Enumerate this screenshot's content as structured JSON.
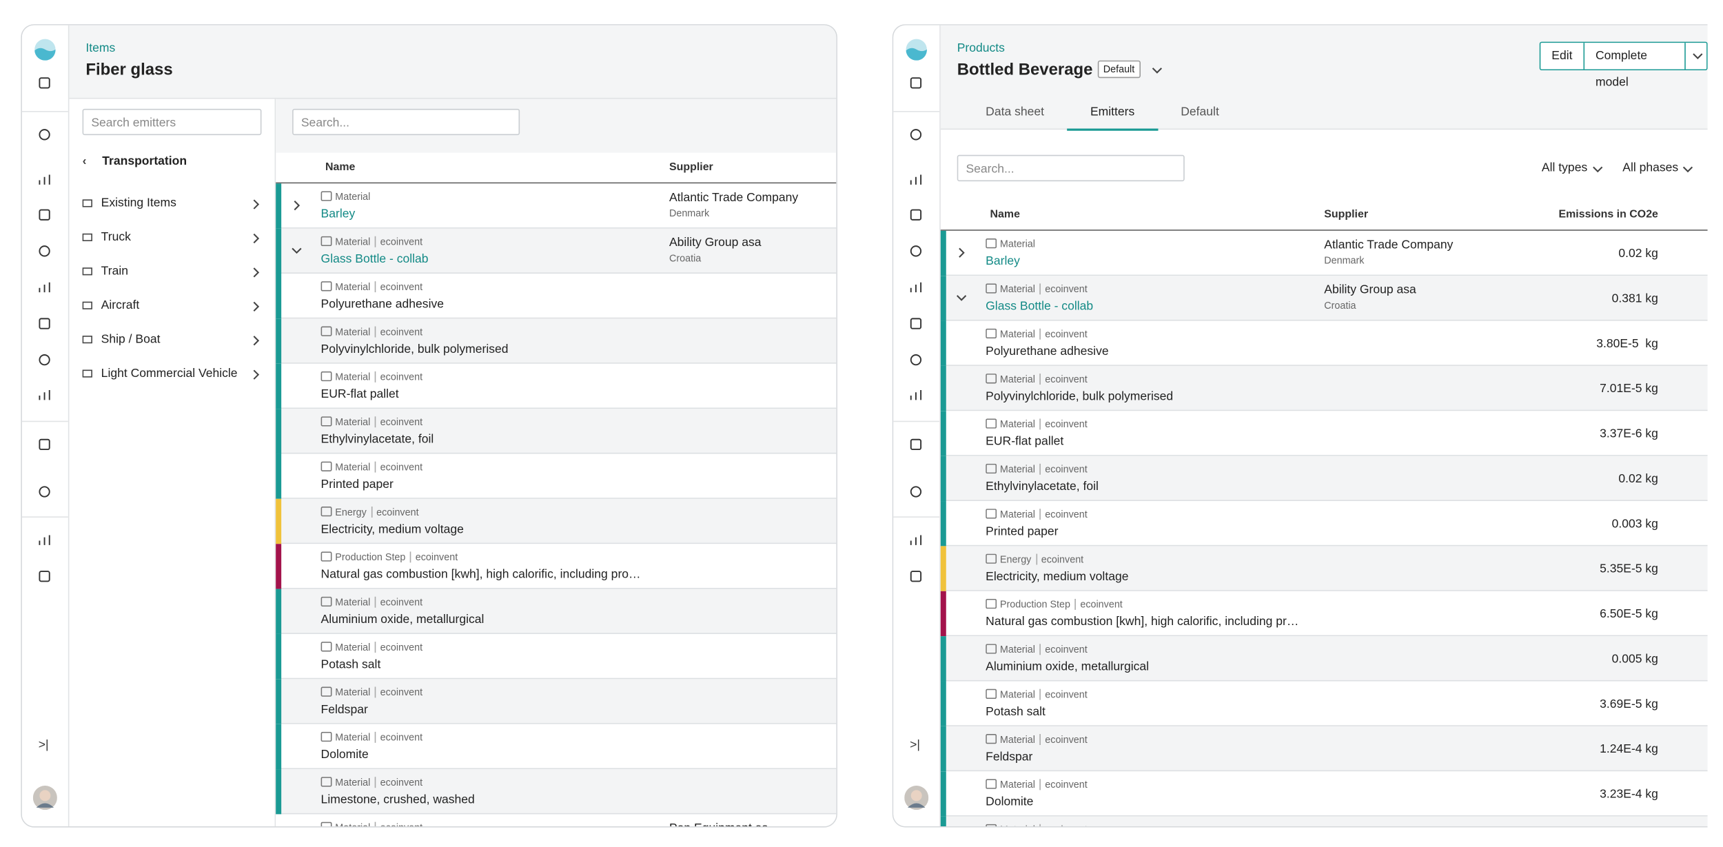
{
  "left": {
    "breadcrumb": "Items",
    "title": "Fiber glass",
    "sidebar": {
      "search_placeholder": "Search emitters",
      "back": "Transportation",
      "categories": [
        "Existing Items",
        "Truck",
        "Train",
        "Aircraft",
        "Ship / Boat",
        "Light Commercial Vehicle"
      ]
    },
    "table": {
      "search_placeholder": "Search...",
      "columns": [
        "Name",
        "Supplier"
      ],
      "rows": [
        {
          "type": "Material",
          "name": "Barley",
          "supplier": "Atlantic Trade Company",
          "country": "Denmark",
          "color": "#1a9a94",
          "expander": "collapsed"
        },
        {
          "type": "Material",
          "source": "ecoinvent",
          "name": "Glass Bottle - collab",
          "supplier": "Ability Group asa",
          "country": "Croatia",
          "color": "#1a9a94",
          "expander": "expanded"
        },
        {
          "type": "Material",
          "source": "ecoinvent",
          "name": "Polyurethane adhesive",
          "color": "#1a9a94"
        },
        {
          "type": "Material",
          "source": "ecoinvent",
          "name": "Polyvinylchloride, bulk polymerised",
          "color": "#1a9a94"
        },
        {
          "type": "Material",
          "source": "ecoinvent",
          "name": "EUR-flat pallet",
          "color": "#1a9a94"
        },
        {
          "type": "Material",
          "source": "ecoinvent",
          "name": "Ethylvinylacetate, foil",
          "color": "#1a9a94"
        },
        {
          "type": "Material",
          "source": "ecoinvent",
          "name": "Printed paper",
          "color": "#1a9a94"
        },
        {
          "type": "Energy",
          "source": "ecoinvent",
          "name": "Electricity, medium voltage",
          "color": "#f0c23b"
        },
        {
          "type": "Production Step",
          "source": "ecoinvent",
          "name": "Natural gas combustion [kwh], high calorific, including pro…",
          "color": "#a3134b"
        },
        {
          "type": "Material",
          "source": "ecoinvent",
          "name": "Aluminium oxide, metallurgical",
          "color": "#1a9a94"
        },
        {
          "type": "Material",
          "source": "ecoinvent",
          "name": "Potash salt",
          "color": "#1a9a94"
        },
        {
          "type": "Material",
          "source": "ecoinvent",
          "name": "Feldspar",
          "color": "#1a9a94"
        },
        {
          "type": "Material",
          "source": "ecoinvent",
          "name": "Dolomite",
          "color": "#1a9a94"
        },
        {
          "type": "Material",
          "source": "ecoinvent",
          "name": "Limestone, crushed, washed",
          "color": "#1a9a94"
        },
        {
          "type": "Material",
          "source": "ecoinvent",
          "supplier": "Pon Equipment as"
        }
      ]
    }
  },
  "right": {
    "breadcrumb": "Products",
    "title": "Bottled Beverage",
    "badge": "Default",
    "buttons": [
      "Edit",
      "Complete model"
    ],
    "tabs": [
      "Data sheet",
      "Emitters",
      "Default"
    ],
    "active_tab": 1,
    "table": {
      "search_placeholder": "Search...",
      "filters": [
        "All types",
        "All phases"
      ],
      "columns": [
        "Name",
        "Supplier",
        "Emissions in CO2e"
      ],
      "rows": [
        {
          "type": "Material",
          "name": "Barley",
          "supplier": "Atlantic Trade Company",
          "country": "Denmark",
          "emissions": "0.02 kg",
          "color": "#1a9a94",
          "expander": "collapsed"
        },
        {
          "type": "Material",
          "source": "ecoinvent",
          "name": "Glass Bottle - collab",
          "supplier": "Ability Group asa",
          "country": "Croatia",
          "emissions": "0.381 kg",
          "color": "#1a9a94",
          "expander": "expanded"
        },
        {
          "type": "Material",
          "source": "ecoinvent",
          "name": "Polyurethane adhesive",
          "emissions": "3.80E-5  kg",
          "color": "#1a9a94"
        },
        {
          "type": "Material",
          "source": "ecoinvent",
          "name": "Polyvinylchloride, bulk polymerised",
          "emissions": "7.01E-5 kg",
          "color": "#1a9a94"
        },
        {
          "type": "Material",
          "source": "ecoinvent",
          "name": "EUR-flat pallet",
          "emissions": "3.37E-6 kg",
          "color": "#1a9a94"
        },
        {
          "type": "Material",
          "source": "ecoinvent",
          "name": "Ethylvinylacetate, foil",
          "emissions": "0.02 kg",
          "color": "#1a9a94"
        },
        {
          "type": "Material",
          "source": "ecoinvent",
          "name": "Printed paper",
          "emissions": "0.003 kg",
          "color": "#1a9a94"
        },
        {
          "type": "Energy",
          "source": "ecoinvent",
          "name": "Electricity, medium voltage",
          "emissions": "5.35E-5 kg",
          "color": "#f0c23b"
        },
        {
          "type": "Production Step",
          "source": "ecoinvent",
          "name": "Natural gas combustion [kwh], high calorific, including pr…",
          "emissions": "6.50E-5 kg",
          "color": "#a3134b"
        },
        {
          "type": "Material",
          "source": "ecoinvent",
          "name": "Aluminium oxide, metallurgical",
          "emissions": "0.005 kg",
          "color": "#1a9a94"
        },
        {
          "type": "Material",
          "source": "ecoinvent",
          "name": "Potash salt",
          "emissions": "3.69E-5 kg",
          "color": "#1a9a94"
        },
        {
          "type": "Material",
          "source": "ecoinvent",
          "name": "Feldspar",
          "emissions": "1.24E-4 kg",
          "color": "#1a9a94"
        },
        {
          "type": "Material",
          "source": "ecoinvent",
          "name": "Dolomite",
          "emissions": "3.23E-4 kg",
          "color": "#1a9a94"
        },
        {
          "type": "Material",
          "source": "ecoinvent",
          "color": "#1a9a94"
        }
      ]
    }
  }
}
